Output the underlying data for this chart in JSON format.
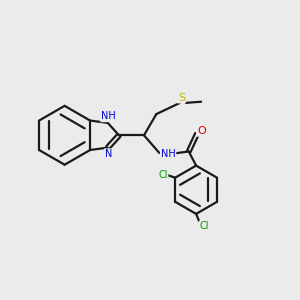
{
  "background_color": "#ebebeb",
  "bond_color": "#1a1a1a",
  "atom_colors": {
    "N": "#0000cc",
    "O": "#dd0000",
    "S": "#bbbb00",
    "Cl": "#009900",
    "C": "#000000"
  },
  "figsize": [
    3.0,
    3.0
  ],
  "dpi": 100
}
